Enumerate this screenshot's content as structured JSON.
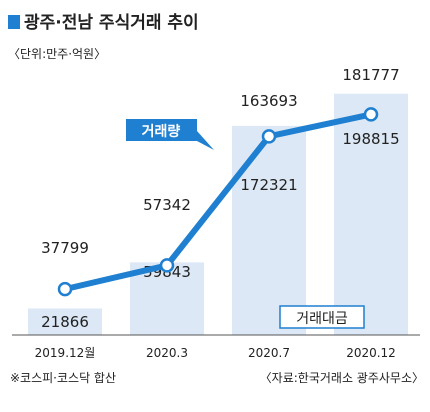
{
  "chart_data": {
    "type": "bar",
    "title": "광주·전남 주식거래 추이",
    "unit": "〈단위:만주·억원〉",
    "categories": [
      "2019.12월",
      "2020.3",
      "2020.7",
      "2020.12"
    ],
    "series": [
      {
        "name": "거래대금",
        "kind": "bar",
        "values": [
          21866,
          59843,
          172321,
          198815
        ],
        "labels": [
          "21866",
          "59843",
          "172321",
          "198815"
        ]
      },
      {
        "name": "거래량",
        "kind": "line",
        "values": [
          37799,
          57342,
          163693,
          181777
        ],
        "labels": [
          "37799",
          "57342",
          "163693",
          "181777"
        ]
      }
    ],
    "ylim": [
      0,
      220000
    ],
    "grid": false,
    "legend": "inline",
    "notes": {
      "left": "※코스피·코스닥 합산",
      "right": "〈자료:한국거래소 광주사무소〉"
    },
    "colors": {
      "title_marker": "#1f7fd0",
      "bar": "#dce8f5",
      "line": "#1f7fd0",
      "marker_fill": "#ffffff",
      "text": "#222222",
      "axis": "#555555",
      "callout": "#1f7fd0"
    }
  }
}
